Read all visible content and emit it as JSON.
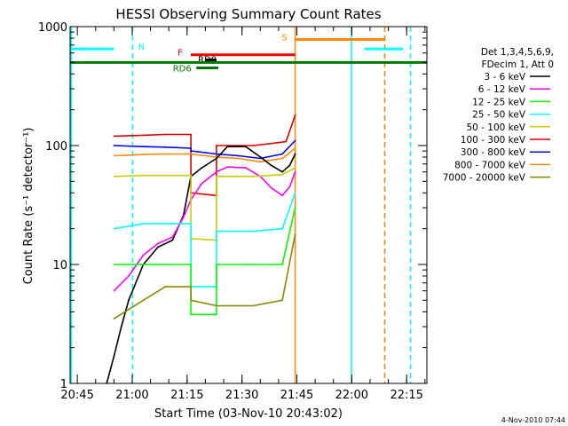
{
  "chart_data": {
    "type": "line",
    "title": "HESSI Observing Summary Count Rates",
    "ylabel": "Count Rate (s⁻¹ detector⁻¹)",
    "xlabel": "Start Time (03-Nov-10 20:43:02)",
    "y_scale": "log",
    "ylim": [
      1,
      1000
    ],
    "xlim_minutes": [
      0,
      97.5
    ],
    "x_ticks": [
      {
        "label": "20:45",
        "minute": 1.97
      },
      {
        "label": "21:00",
        "minute": 16.97
      },
      {
        "label": "21:15",
        "minute": 31.97
      },
      {
        "label": "21:30",
        "minute": 46.97
      },
      {
        "label": "21:45",
        "minute": 61.97
      },
      {
        "label": "22:00",
        "minute": 76.97
      },
      {
        "label": "22:15",
        "minute": 91.97
      }
    ],
    "y_ticks": [
      {
        "label": "1",
        "value": 1
      },
      {
        "label": "10",
        "value": 10
      },
      {
        "label": "100",
        "value": 100
      },
      {
        "label": "1000",
        "value": 1000
      }
    ],
    "legend": {
      "position": "right",
      "header": [
        "Det 1,3,4,5,6,9,",
        "FDecim 1, Att 0"
      ],
      "entries": [
        {
          "label": "3 - 6 keV",
          "color": "#000000"
        },
        {
          "label": "6 - 12 keV",
          "color": "#ff00ff"
        },
        {
          "label": "12 - 25 keV",
          "color": "#00ff00"
        },
        {
          "label": "25 - 50 keV",
          "color": "#00ffff"
        },
        {
          "label": "50 - 100 keV",
          "color": "#cccc00"
        },
        {
          "label": "100 - 300 keV",
          "color": "#dd0000"
        },
        {
          "label": "300 - 800 keV",
          "color": "#0000ee"
        },
        {
          "label": "800 - 7000 keV",
          "color": "#ff8800"
        },
        {
          "label": "7000 - 20000 keV",
          "color": "#888800"
        }
      ]
    },
    "flag_bars": [
      {
        "label": "N",
        "color": "#00ffff",
        "value": 650,
        "segments": [
          [
            0,
            12
          ],
          [
            80.5,
            91
          ]
        ]
      },
      {
        "label": "S",
        "color": "#ff8800",
        "value": 780,
        "segments": [
          [
            61.5,
            86
          ]
        ]
      },
      {
        "label": "F",
        "color": "#ee0000",
        "value": 580,
        "segments": [
          [
            33,
            61.5
          ]
        ]
      },
      {
        "label": "RD0",
        "color": "#000000",
        "value": 525,
        "segments": [
          [
            37,
            40
          ]
        ]
      },
      {
        "label": "RD6",
        "color": "#007700",
        "value": 450,
        "segments": [
          [
            34.5,
            40.5
          ]
        ]
      },
      {
        "label": "",
        "color": "#007700",
        "value": 500,
        "segments": [
          [
            0,
            97.5
          ]
        ]
      }
    ],
    "vertical_markers": [
      {
        "minute": 0.3,
        "color": "#00ffff",
        "style": "solid"
      },
      {
        "minute": 17.1,
        "color": "#00ffff",
        "style": "dashed"
      },
      {
        "minute": 61.5,
        "color": "#ff8800",
        "style": "solid"
      },
      {
        "minute": 76.9,
        "color": "#00ffff",
        "style": "solid"
      },
      {
        "minute": 86.0,
        "color": "#ff8800",
        "style": "dashed"
      },
      {
        "minute": 93.0,
        "color": "#00ffff",
        "style": "dashed"
      }
    ],
    "series": [
      {
        "color": "#dd0000",
        "points": [
          [
            12,
            120
          ],
          [
            20,
            122
          ],
          [
            26,
            124
          ],
          [
            33,
            124
          ],
          [
            33,
            40
          ],
          [
            40,
            38
          ],
          [
            40,
            100
          ],
          [
            50,
            100
          ],
          [
            55,
            104
          ],
          [
            59,
            108
          ],
          [
            61.5,
            180
          ]
        ]
      },
      {
        "color": "#0000ee",
        "points": [
          [
            12,
            100
          ],
          [
            20,
            98
          ],
          [
            26,
            97
          ],
          [
            33,
            95
          ],
          [
            33,
            90
          ],
          [
            40,
            85
          ],
          [
            46,
            82
          ],
          [
            52,
            78
          ],
          [
            58,
            85
          ],
          [
            61.5,
            110
          ]
        ]
      },
      {
        "color": "#ff8800",
        "points": [
          [
            12,
            82
          ],
          [
            20,
            84
          ],
          [
            26,
            85
          ],
          [
            33,
            85
          ],
          [
            40,
            80
          ],
          [
            46,
            78
          ],
          [
            52,
            73
          ],
          [
            58,
            78
          ],
          [
            61.5,
            95
          ]
        ]
      },
      {
        "color": "#000000",
        "points": [
          [
            10,
            1
          ],
          [
            12,
            1.7
          ],
          [
            14,
            3
          ],
          [
            16,
            5
          ],
          [
            20,
            10
          ],
          [
            24,
            14
          ],
          [
            28,
            16
          ],
          [
            31,
            26
          ],
          [
            33,
            55
          ],
          [
            36,
            65
          ],
          [
            40,
            78
          ],
          [
            43,
            98
          ],
          [
            48,
            98
          ],
          [
            52,
            80
          ],
          [
            55,
            68
          ],
          [
            58,
            60
          ],
          [
            60,
            68
          ],
          [
            61.5,
            85
          ]
        ]
      },
      {
        "color": "#ff00ff",
        "points": [
          [
            12,
            6
          ],
          [
            16,
            8
          ],
          [
            20,
            12
          ],
          [
            24,
            15
          ],
          [
            28,
            17
          ],
          [
            31,
            25
          ],
          [
            33,
            35
          ],
          [
            36,
            48
          ],
          [
            40,
            60
          ],
          [
            43,
            66
          ],
          [
            48,
            65
          ],
          [
            52,
            55
          ],
          [
            55,
            44
          ],
          [
            58,
            38
          ],
          [
            60,
            45
          ],
          [
            61.5,
            60
          ]
        ]
      },
      {
        "color": "#cccc00",
        "points": [
          [
            12,
            55
          ],
          [
            20,
            56
          ],
          [
            26,
            56
          ],
          [
            33,
            56
          ],
          [
            33,
            16.5
          ],
          [
            40,
            16
          ],
          [
            40,
            55
          ],
          [
            50,
            55
          ],
          [
            58,
            57
          ],
          [
            61.5,
            65
          ]
        ]
      },
      {
        "color": "#00ffff",
        "points": [
          [
            12,
            20
          ],
          [
            20,
            22
          ],
          [
            26,
            22
          ],
          [
            33,
            22
          ],
          [
            33,
            6.5
          ],
          [
            40,
            6.5
          ],
          [
            40,
            19
          ],
          [
            50,
            19
          ],
          [
            58,
            20
          ],
          [
            61.5,
            40
          ]
        ]
      },
      {
        "color": "#00ff00",
        "points": [
          [
            12,
            10
          ],
          [
            20,
            10
          ],
          [
            26,
            10
          ],
          [
            33,
            10
          ],
          [
            33,
            3.8
          ],
          [
            40,
            3.8
          ],
          [
            40,
            10
          ],
          [
            50,
            10
          ],
          [
            58,
            10
          ],
          [
            61.5,
            30
          ]
        ]
      },
      {
        "color": "#888800",
        "points": [
          [
            12,
            3.5
          ],
          [
            20,
            5
          ],
          [
            26,
            6.5
          ],
          [
            33,
            6.5
          ],
          [
            33,
            5
          ],
          [
            40,
            4.5
          ],
          [
            40,
            4.5
          ],
          [
            50,
            4.5
          ],
          [
            58,
            5
          ],
          [
            61.5,
            18
          ]
        ]
      }
    ],
    "grid": false
  },
  "footer_timestamp": "4-Nov-2010 07:44"
}
